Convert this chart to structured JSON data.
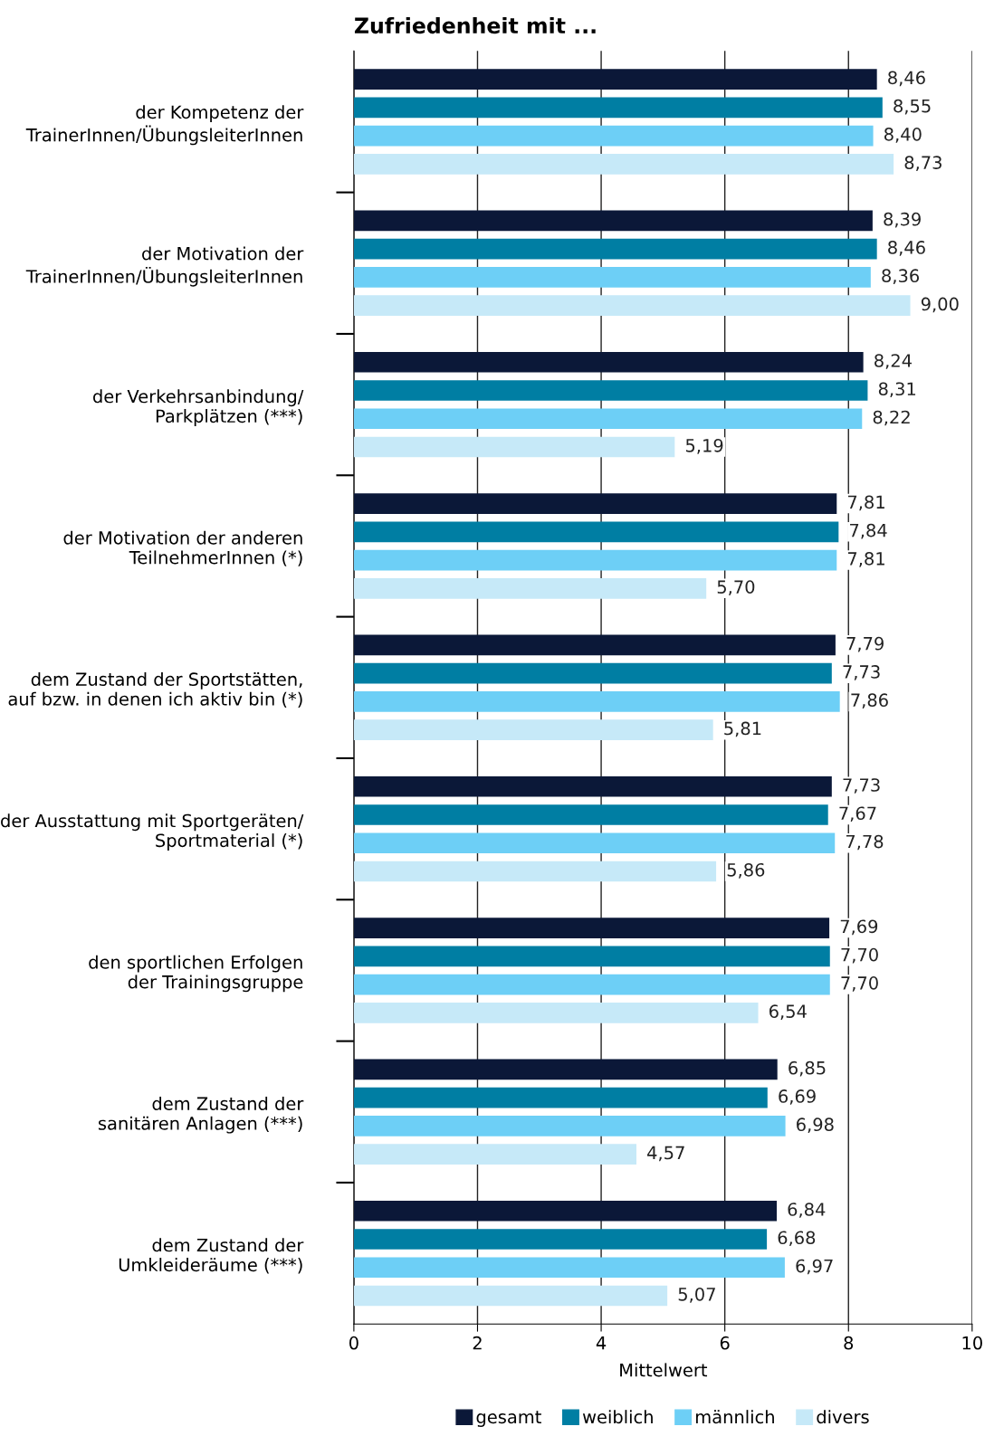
{
  "chart_data": {
    "type": "bar",
    "orientation": "horizontal",
    "title": "Zufriedenheit mit ...",
    "xlabel": "Mittelwert",
    "categories": [
      "der Kompetenz der\nTrainerInnen/ÜbungsleiterInnen",
      "der Motivation der\nTrainerInnen/ÜbungsleiterInnen",
      "der Verkehrsanbindung/\nParkplätzen (***)",
      "der Motivation der anderen\nTeilnehmerInnen (*)",
      "dem Zustand der Sportstätten,\nauf bzw. in denen ich aktiv bin (*)",
      "der Ausstattung mit Sportgeräten/\nSportmaterial (*)",
      "den sportlichen Erfolgen\nder Trainingsgruppe",
      "dem Zustand der\nsanitären Anlagen (***)",
      "dem Zustand der\nUmkleideräume (***)"
    ],
    "series": [
      {
        "name": "gesamt",
        "color": "#0b1838",
        "values": [
          8.46,
          8.39,
          8.24,
          7.81,
          7.79,
          7.73,
          7.69,
          6.85,
          6.84
        ],
        "value_labels": [
          "8,46",
          "8,39",
          "8,24",
          "7,81",
          "7,79",
          "7,73",
          "7,69",
          "6,85",
          "6,84"
        ]
      },
      {
        "name": "weiblich",
        "color": "#007ea3",
        "values": [
          8.55,
          8.46,
          8.31,
          7.84,
          7.73,
          7.67,
          7.7,
          6.69,
          6.68
        ],
        "value_labels": [
          "8,55",
          "8,46",
          "8,31",
          "7,84",
          "7,73",
          "7,67",
          "7,70",
          "6,69",
          "6,68"
        ]
      },
      {
        "name": "männlich",
        "color": "#6dcff6",
        "values": [
          8.4,
          8.36,
          8.22,
          7.81,
          7.86,
          7.78,
          7.7,
          6.98,
          6.97
        ],
        "value_labels": [
          "8,40",
          "8,36",
          "8,22",
          "7,81",
          "7,86",
          "7,78",
          "7,70",
          "6,98",
          "6,97"
        ]
      },
      {
        "name": "divers",
        "color": "#c6e9f8",
        "values": [
          8.73,
          9.0,
          5.19,
          5.7,
          5.81,
          5.86,
          6.54,
          4.57,
          5.07
        ],
        "value_labels": [
          "8,73",
          "9,00",
          "5,19",
          "5,70",
          "5,81",
          "5,86",
          "6,54",
          "4,57",
          "5,07"
        ]
      }
    ],
    "xlim": [
      0,
      10
    ],
    "xticks": [
      0,
      2,
      4,
      6,
      8,
      10
    ],
    "grid": "x",
    "legend": "bottom"
  }
}
